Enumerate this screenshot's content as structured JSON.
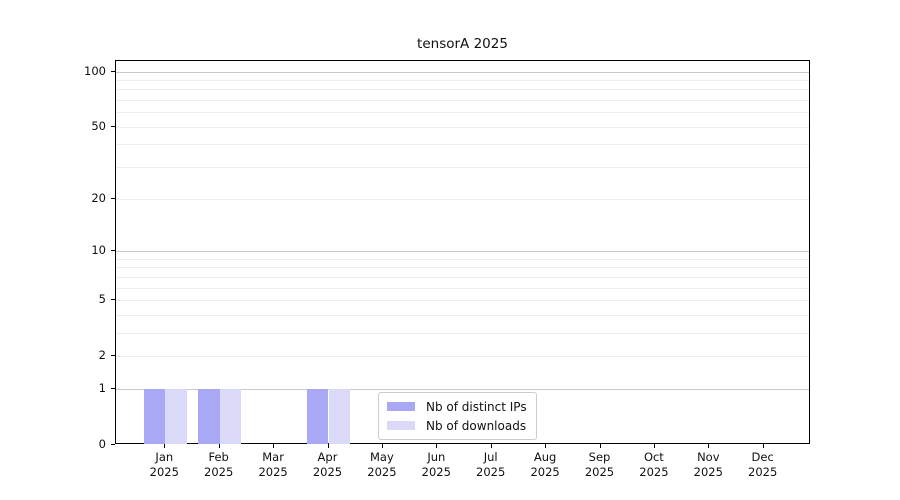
{
  "chart_data": {
    "type": "bar",
    "title": "tensorA 2025",
    "categories": [
      "Jan",
      "Feb",
      "Mar",
      "Apr",
      "May",
      "Jun",
      "Jul",
      "Aug",
      "Sep",
      "Oct",
      "Nov",
      "Dec"
    ],
    "category_year": "2025",
    "series": [
      {
        "name": "Nb of distinct IPs",
        "color": "#a8a8f5",
        "values": [
          1,
          1,
          0,
          1,
          0,
          0,
          0,
          0,
          0,
          0,
          0,
          0
        ]
      },
      {
        "name": "Nb of downloads",
        "color": "#dadaf8",
        "values": [
          1,
          1,
          0,
          1,
          0,
          0,
          0,
          0,
          0,
          0,
          0,
          0
        ]
      }
    ],
    "yaxis": {
      "scale": "log1p",
      "ylim": [
        0,
        100
      ],
      "tick_labels": [
        "100",
        "50",
        "20",
        "10",
        "5",
        "2",
        "1",
        "0"
      ],
      "tick_values": [
        100,
        50,
        20,
        10,
        5,
        2,
        1,
        0
      ],
      "major_grid": [
        1,
        10,
        100
      ],
      "minor_grid": [
        2,
        3,
        4,
        5,
        6,
        7,
        8,
        9,
        20,
        30,
        40,
        50,
        60,
        70,
        80,
        90
      ]
    },
    "legend": {
      "position": "inside-bottom-center"
    },
    "grid": "horizontal",
    "colors": {
      "axis": "#000000",
      "major_grid": "#c9c9c9",
      "minor_grid": "#ececec",
      "text": "#111111",
      "background": "#ffffff"
    }
  }
}
